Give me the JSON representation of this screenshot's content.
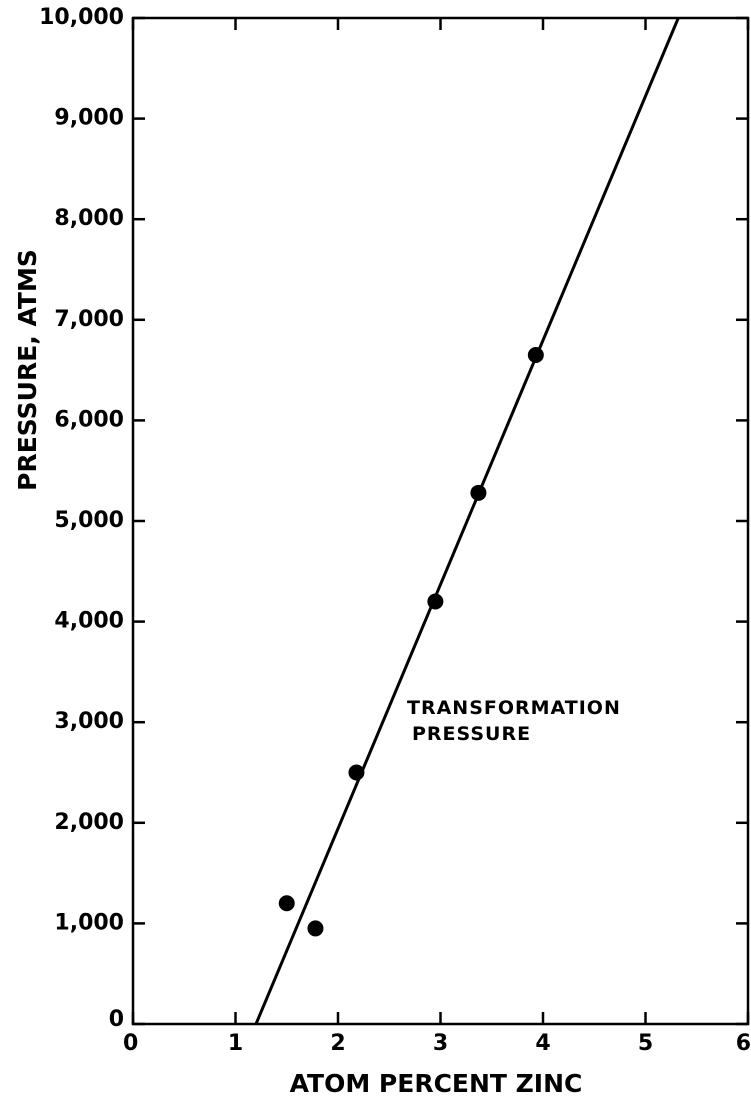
{
  "chart_data": {
    "type": "scatter",
    "title": "",
    "xlabel": "ATOM PERCENT ZINC",
    "ylabel": "PRESSURE, ATMS",
    "xlim": [
      0,
      6
    ],
    "ylim": [
      0,
      10000
    ],
    "x_ticks": [
      "0",
      "1",
      "2",
      "3",
      "4",
      "5",
      "6"
    ],
    "y_ticks": [
      "0",
      "1,000",
      "2,000",
      "3,000",
      "4,000",
      "5,000",
      "6,000",
      "7,000",
      "8,000",
      "9,000",
      "10,000"
    ],
    "grid": false,
    "series": [
      {
        "marker": "filled-circle",
        "x": [
          1.5,
          1.78,
          2.18,
          2.95,
          3.37,
          3.93
        ],
        "y": [
          1200,
          950,
          2500,
          4200,
          5280,
          6650
        ]
      }
    ],
    "fit_line": {
      "x": [
        1.2,
        5.32
      ],
      "y": [
        0,
        10000
      ]
    },
    "annotation": {
      "line1": "TRANSFORMATION",
      "line2": "PRESSURE"
    },
    "colors": {
      "ink": "#000000",
      "background": "#ffffff"
    }
  }
}
